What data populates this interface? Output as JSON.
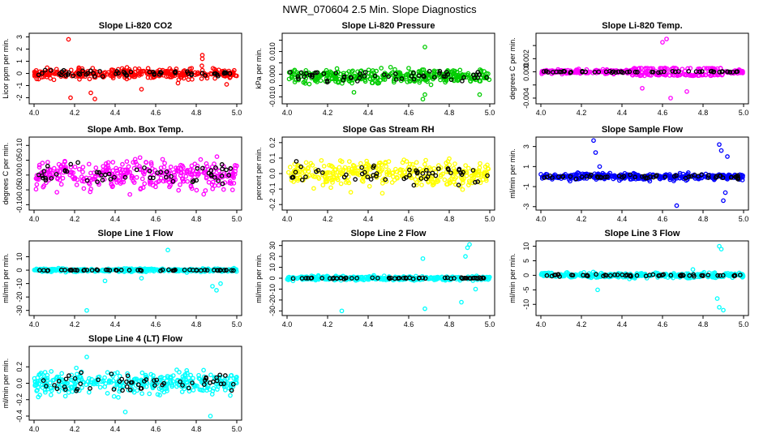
{
  "figure": {
    "title": "NWR_070604  2.5 Min. Slope Diagnostics",
    "background": "#ffffff"
  },
  "chart_data": [
    {
      "type": "scatter",
      "title": "Slope Li-820 CO2",
      "xlabel": "",
      "ylabel": "Licor ppm per min.",
      "color": "#ff0000",
      "xlim": [
        4.0,
        5.0
      ],
      "ylim": [
        -2.3,
        3.1
      ],
      "xticks": [
        4.0,
        4.2,
        4.4,
        4.6,
        4.8,
        5.0
      ],
      "yticks": [
        -2,
        -1,
        0,
        1,
        2,
        3
      ],
      "ytick_labels": [
        "-2",
        "-1",
        "0",
        "1",
        "2",
        "3"
      ],
      "noise": 0.4,
      "spread": 1.2,
      "black_noise": 0.25,
      "outliers": [
        [
          4.17,
          2.8
        ],
        [
          4.18,
          -2.0
        ],
        [
          4.3,
          -2.1
        ],
        [
          4.28,
          -1.6
        ],
        [
          4.53,
          -1.3
        ],
        [
          4.83,
          1.5
        ],
        [
          4.83,
          1.2
        ],
        [
          4.95,
          -0.9
        ],
        [
          4.71,
          -0.8
        ]
      ]
    },
    {
      "type": "scatter",
      "title": "Slope Li-820 Pressure",
      "xlabel": "",
      "ylabel": "kPa per min.",
      "color": "#00cc00",
      "xlim": [
        4.0,
        5.0
      ],
      "ylim": [
        -0.012,
        0.017
      ],
      "xticks": [
        4.0,
        4.2,
        4.4,
        4.6,
        4.8,
        5.0
      ],
      "yticks": [
        -0.01,
        -0.005,
        0.0,
        0.005,
        0.01,
        0.015
      ],
      "ytick_labels": [
        "-0.010",
        "",
        "0.000",
        "",
        "0.010",
        ""
      ],
      "noise": 0.003,
      "spread": 0.007,
      "black_noise": 0.002,
      "offset": -0.001,
      "outliers": [
        [
          4.67,
          -0.011
        ],
        [
          4.68,
          -0.009
        ],
        [
          4.95,
          -0.009
        ],
        [
          4.33,
          -0.008
        ],
        [
          4.68,
          0.012
        ]
      ]
    },
    {
      "type": "scatter",
      "title": "Slope Li-820 Temp.",
      "xlabel": "",
      "ylabel": "degrees C per min.",
      "color": "#ff00ff",
      "xlim": [
        4.0,
        5.0
      ],
      "ylim": [
        -0.0045,
        0.0055
      ],
      "xticks": [
        4.0,
        4.2,
        4.4,
        4.6,
        4.8,
        5.0
      ],
      "yticks": [
        -0.004,
        -0.002,
        0.0,
        0.002,
        0.004
      ],
      "ytick_labels": [
        "-0.004",
        "",
        "0.000",
        "0.002",
        ""
      ],
      "noise": 0.0003,
      "spread": 0.0006,
      "black_noise": 0.0001,
      "burst": [
        4.45,
        4.9,
        0.0018
      ],
      "outliers": [
        [
          4.62,
          0.005
        ],
        [
          4.6,
          0.0045
        ],
        [
          4.64,
          -0.004
        ],
        [
          4.5,
          -0.0025
        ],
        [
          4.72,
          -0.003
        ]
      ]
    },
    {
      "type": "scatter",
      "title": "Slope Amb. Box Temp.",
      "xlabel": "",
      "ylabel": "degrees C per min.",
      "color": "#ff00ff",
      "xlim": [
        4.0,
        5.0
      ],
      "ylim": [
        -0.11,
        0.12
      ],
      "xticks": [
        4.0,
        4.2,
        4.4,
        4.6,
        4.8,
        5.0
      ],
      "yticks": [
        -0.1,
        -0.05,
        0.0,
        0.05,
        0.1
      ],
      "ytick_labels": [
        "-0.10",
        "-0.05",
        "0.00",
        "0.05",
        "0.10"
      ],
      "noise": 0.045,
      "spread": 0.1,
      "black_noise": 0.035,
      "outliers": []
    },
    {
      "type": "scatter",
      "title": "Slope Gas Stream RH",
      "xlabel": "",
      "ylabel": "percent per min.",
      "color": "#ffff00",
      "xlim": [
        4.0,
        5.0
      ],
      "ylim": [
        -0.22,
        0.22
      ],
      "xticks": [
        4.0,
        4.2,
        4.4,
        4.6,
        4.8,
        5.0
      ],
      "yticks": [
        -0.2,
        -0.1,
        0.0,
        0.1,
        0.2
      ],
      "ytick_labels": [
        "-0.2",
        "-0.1",
        "0.0",
        "0.1",
        "0.2"
      ],
      "noise": 0.08,
      "spread": 0.19,
      "black_noise": 0.06,
      "outliers": []
    },
    {
      "type": "scatter",
      "title": "Slope Sample Flow",
      "xlabel": "",
      "ylabel": "ml/min per min.",
      "color": "#0000ff",
      "xlim": [
        4.0,
        5.0
      ],
      "ylim": [
        -3.1,
        3.7
      ],
      "xticks": [
        4.0,
        4.2,
        4.4,
        4.6,
        4.8,
        5.0
      ],
      "yticks": [
        -3,
        -1,
        1,
        3
      ],
      "ytick_labels": [
        "-3",
        "-1",
        "1",
        "3"
      ],
      "noise": 0.3,
      "spread": 0.7,
      "black_noise": 0.2,
      "outliers": [
        [
          4.26,
          3.6
        ],
        [
          4.27,
          2.4
        ],
        [
          4.67,
          -2.9
        ],
        [
          4.88,
          3.2
        ],
        [
          4.89,
          2.6
        ],
        [
          4.9,
          -2.4
        ],
        [
          4.91,
          -1.6
        ],
        [
          4.92,
          2.0
        ],
        [
          4.29,
          1.0
        ]
      ]
    },
    {
      "type": "scatter",
      "title": "Slope Line 1 Flow",
      "xlabel": "",
      "ylabel": "ml/min per min.",
      "color": "#00ffff",
      "xlim": [
        4.0,
        5.0
      ],
      "ylim": [
        -32,
        20
      ],
      "xticks": [
        4.0,
        4.2,
        4.4,
        4.6,
        4.8,
        5.0
      ],
      "yticks": [
        -30,
        -20,
        -10,
        0,
        10
      ],
      "ytick_labels": [
        "-30",
        "-20",
        "-10",
        "0",
        "10"
      ],
      "noise": 1.2,
      "spread": 2.5,
      "black_noise": 0.4,
      "outliers": [
        [
          4.26,
          -30
        ],
        [
          4.66,
          15
        ],
        [
          4.88,
          -12
        ],
        [
          4.9,
          -15
        ],
        [
          4.92,
          -10
        ],
        [
          4.35,
          -8
        ],
        [
          4.53,
          -6
        ]
      ]
    },
    {
      "type": "scatter",
      "title": "Slope Line 2 Flow",
      "xlabel": "",
      "ylabel": "ml/min per min.",
      "color": "#00ffff",
      "xlim": [
        4.0,
        5.0
      ],
      "ylim": [
        -32,
        32
      ],
      "xticks": [
        4.0,
        4.2,
        4.4,
        4.6,
        4.8,
        5.0
      ],
      "yticks": [
        -30,
        -20,
        -10,
        0,
        10,
        20,
        30
      ],
      "ytick_labels": [
        "-30",
        "-20",
        "-10",
        "0",
        "10",
        "20",
        "30"
      ],
      "noise": 1.8,
      "spread": 3,
      "black_noise": 0.6,
      "outliers": [
        [
          4.27,
          -30
        ],
        [
          4.68,
          -28
        ],
        [
          4.86,
          -22
        ],
        [
          4.89,
          28
        ],
        [
          4.9,
          31
        ],
        [
          4.88,
          20
        ],
        [
          4.93,
          -10
        ],
        [
          4.67,
          18
        ]
      ]
    },
    {
      "type": "scatter",
      "title": "Slope Line 3 Flow",
      "xlabel": "",
      "ylabel": "ml/min per min.",
      "color": "#00ffff",
      "xlim": [
        4.0,
        5.0
      ],
      "ylim": [
        -13,
        11
      ],
      "xticks": [
        4.0,
        4.2,
        4.4,
        4.6,
        4.8,
        5.0
      ],
      "yticks": [
        -10,
        -5,
        0,
        5,
        10
      ],
      "ytick_labels": [
        "-10",
        "-5",
        "0",
        "5",
        "10"
      ],
      "noise": 0.8,
      "spread": 1.8,
      "black_noise": 0.3,
      "outliers": [
        [
          4.88,
          10
        ],
        [
          4.89,
          9
        ],
        [
          4.88,
          -11
        ],
        [
          4.9,
          -12
        ],
        [
          4.87,
          -8
        ],
        [
          4.28,
          -5
        ],
        [
          4.75,
          2
        ]
      ]
    },
    {
      "type": "scatter",
      "title": "Slope Line 4 (LT) Flow",
      "xlabel": "",
      "ylabel": "ml/min per min.",
      "color": "#00ffff",
      "xlim": [
        4.0,
        5.0
      ],
      "ylim": [
        -0.42,
        0.42
      ],
      "xticks": [
        4.0,
        4.2,
        4.4,
        4.6,
        4.8,
        5.0
      ],
      "yticks": [
        -0.4,
        -0.2,
        0.0,
        0.2
      ],
      "ytick_labels": [
        "-0.4",
        "-0.2",
        "0.0",
        "0.2"
      ],
      "noise": 0.13,
      "spread": 0.32,
      "black_noise": 0.12,
      "outliers": [
        [
          4.87,
          -0.4
        ],
        [
          4.26,
          0.32
        ],
        [
          4.45,
          -0.35
        ]
      ]
    }
  ]
}
